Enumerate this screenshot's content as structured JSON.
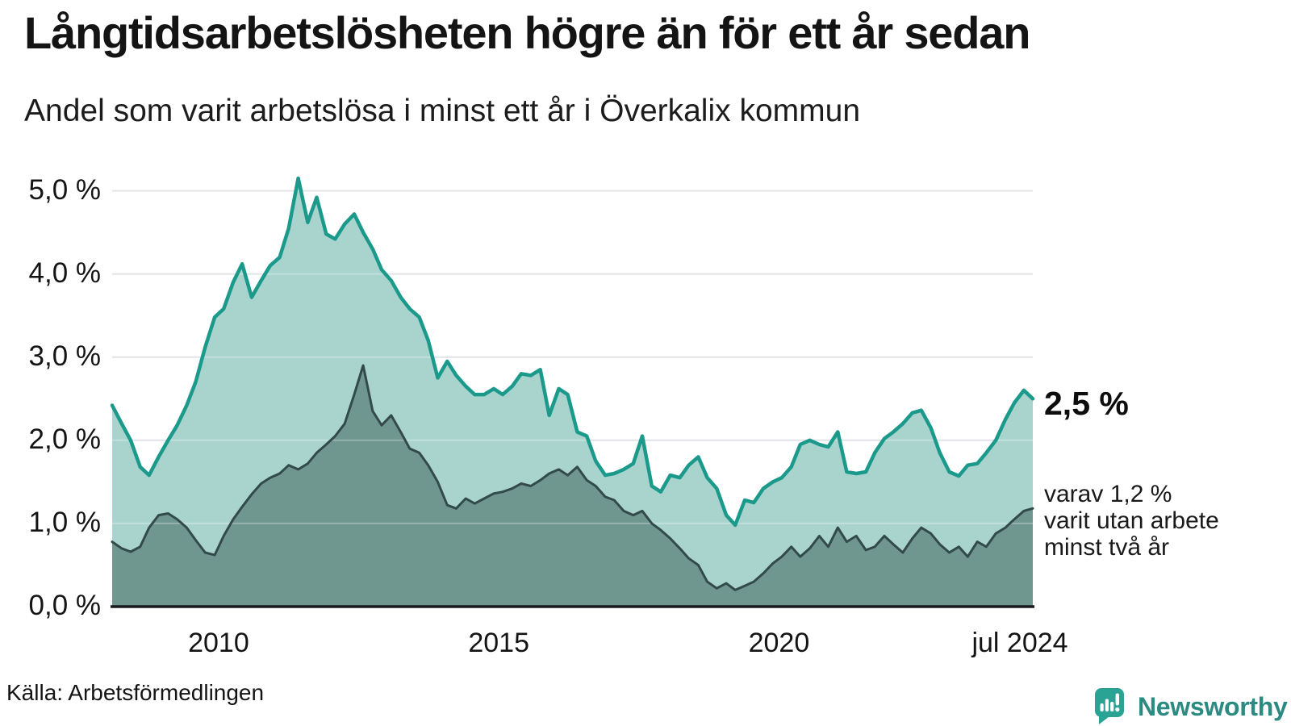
{
  "header": {
    "title": "Långtidsarbetslösheten högre än för ett år sedan",
    "subtitle": "Andel som varit arbetslösa i minst ett år i Överkalix kommun"
  },
  "annotations": {
    "latest_value": "2,5 %",
    "note": "varav 1,2 %\nvarit utan arbete\nminst två år"
  },
  "footer": {
    "source": "Källa: Arbetsförmedlingen",
    "brand": "Newsworthy"
  },
  "chart_data": {
    "type": "area",
    "title": "Långtidsarbetslösheten högre än för ett år sedan",
    "subtitle": "Andel som varit arbetslösa i minst ett år i Överkalix kommun",
    "y_unit": "%",
    "ylim": [
      0,
      5.4
    ],
    "xlim": [
      2008.1,
      2024.53
    ],
    "grid": "horizontal",
    "legend_position": "annotations-right",
    "x": [
      2008.1,
      2008.27,
      2008.43,
      2008.6,
      2008.76,
      2008.93,
      2009.1,
      2009.26,
      2009.43,
      2009.59,
      2009.76,
      2009.93,
      2010.09,
      2010.26,
      2010.42,
      2010.59,
      2010.76,
      2010.92,
      2011.09,
      2011.25,
      2011.42,
      2011.59,
      2011.75,
      2011.92,
      2012.08,
      2012.25,
      2012.42,
      2012.58,
      2012.75,
      2012.91,
      2013.08,
      2013.25,
      2013.41,
      2013.58,
      2013.74,
      2013.91,
      2014.08,
      2014.24,
      2014.41,
      2014.57,
      2014.74,
      2014.91,
      2015.07,
      2015.24,
      2015.4,
      2015.57,
      2015.74,
      2015.9,
      2016.07,
      2016.23,
      2016.4,
      2016.57,
      2016.73,
      2016.9,
      2017.06,
      2017.23,
      2017.4,
      2017.56,
      2017.73,
      2017.89,
      2018.06,
      2018.23,
      2018.39,
      2018.56,
      2018.72,
      2018.89,
      2019.06,
      2019.22,
      2019.39,
      2019.55,
      2019.72,
      2019.89,
      2020.05,
      2020.22,
      2020.38,
      2020.55,
      2020.72,
      2020.88,
      2021.05,
      2021.21,
      2021.38,
      2021.55,
      2021.71,
      2021.88,
      2022.04,
      2022.21,
      2022.38,
      2022.54,
      2022.71,
      2022.87,
      2023.04,
      2023.21,
      2023.37,
      2023.54,
      2023.7,
      2023.87,
      2024.04,
      2024.2,
      2024.37,
      2024.53
    ],
    "series": [
      {
        "name": "Andel arbetslösa minst ett år",
        "latest_label": "2,5 %",
        "line_color": "#1b9a8c",
        "fill_color": "#a9d4cd",
        "values": [
          2.42,
          2.2,
          2.0,
          1.68,
          1.58,
          1.8,
          2.0,
          2.18,
          2.42,
          2.7,
          3.12,
          3.48,
          3.58,
          3.9,
          4.12,
          3.72,
          3.92,
          4.1,
          4.2,
          4.55,
          5.15,
          4.62,
          4.92,
          4.48,
          4.42,
          4.6,
          4.72,
          4.5,
          4.3,
          4.05,
          3.92,
          3.72,
          3.58,
          3.48,
          3.2,
          2.75,
          2.95,
          2.78,
          2.65,
          2.55,
          2.55,
          2.62,
          2.55,
          2.65,
          2.8,
          2.78,
          2.85,
          2.3,
          2.62,
          2.55,
          2.1,
          2.05,
          1.75,
          1.58,
          1.6,
          1.65,
          1.72,
          2.05,
          1.45,
          1.38,
          1.58,
          1.55,
          1.7,
          1.8,
          1.55,
          1.42,
          1.1,
          0.98,
          1.28,
          1.25,
          1.42,
          1.5,
          1.55,
          1.68,
          1.95,
          2.0,
          1.95,
          1.92,
          2.1,
          1.62,
          1.6,
          1.62,
          1.85,
          2.02,
          2.1,
          2.2,
          2.33,
          2.36,
          2.15,
          1.85,
          1.62,
          1.57,
          1.7,
          1.72,
          1.85,
          2.0,
          2.25,
          2.45,
          2.6,
          2.5
        ]
      },
      {
        "name": "Varav utan arbete minst två år",
        "latest_label": "1,2 %",
        "line_color": "#334a4a",
        "fill_color": "#6f968f",
        "values": [
          0.78,
          0.7,
          0.66,
          0.72,
          0.95,
          1.1,
          1.12,
          1.05,
          0.95,
          0.8,
          0.65,
          0.62,
          0.85,
          1.05,
          1.2,
          1.35,
          1.48,
          1.55,
          1.6,
          1.7,
          1.65,
          1.72,
          1.85,
          1.95,
          2.05,
          2.2,
          2.55,
          2.9,
          2.35,
          2.18,
          2.3,
          2.1,
          1.9,
          1.85,
          1.7,
          1.5,
          1.22,
          1.18,
          1.3,
          1.24,
          1.3,
          1.36,
          1.38,
          1.42,
          1.48,
          1.45,
          1.52,
          1.6,
          1.65,
          1.58,
          1.68,
          1.52,
          1.45,
          1.32,
          1.28,
          1.15,
          1.1,
          1.15,
          1.0,
          0.92,
          0.82,
          0.7,
          0.58,
          0.5,
          0.3,
          0.22,
          0.28,
          0.2,
          0.25,
          0.3,
          0.4,
          0.52,
          0.6,
          0.72,
          0.6,
          0.7,
          0.85,
          0.72,
          0.95,
          0.78,
          0.85,
          0.68,
          0.72,
          0.85,
          0.75,
          0.65,
          0.82,
          0.95,
          0.88,
          0.75,
          0.65,
          0.72,
          0.6,
          0.78,
          0.72,
          0.88,
          0.95,
          1.05,
          1.15,
          1.18
        ]
      }
    ],
    "y_ticks": [
      {
        "label": "0,0 %",
        "value": 0
      },
      {
        "label": "1,0 %",
        "value": 1
      },
      {
        "label": "2,0 %",
        "value": 2
      },
      {
        "label": "3,0 %",
        "value": 3
      },
      {
        "label": "4,0 %",
        "value": 4
      },
      {
        "label": "5,0 %",
        "value": 5
      }
    ],
    "x_ticks": [
      {
        "label": "2010",
        "year": 2010
      },
      {
        "label": "2015",
        "year": 2015
      },
      {
        "label": "2020",
        "year": 2020
      },
      {
        "label": "jul 2024",
        "year": 2024.53
      }
    ],
    "colors": {
      "grid": "#d9dade",
      "grid_overlay": "rgba(255,255,255,0.28)",
      "axis": "#17191c",
      "brand_teal": "#2aa294",
      "brand_text": "#2b8a82"
    }
  }
}
